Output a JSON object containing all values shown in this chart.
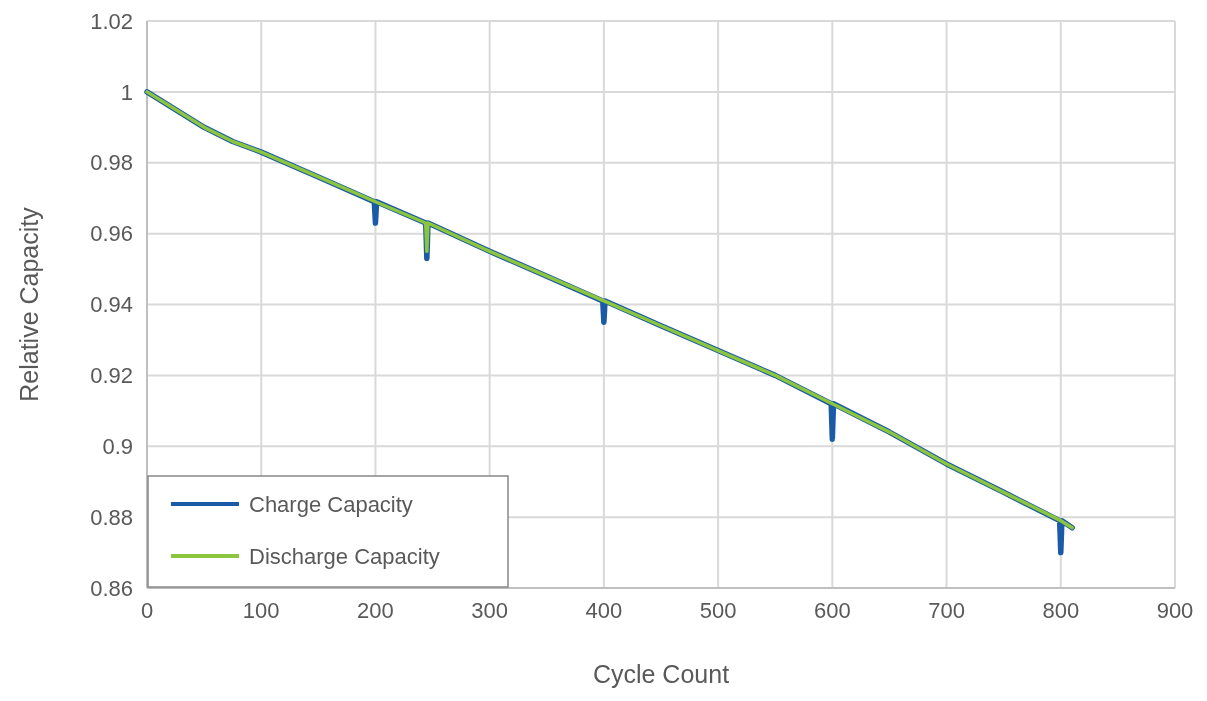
{
  "chart_data": {
    "type": "line",
    "xlabel": "Cycle Count",
    "ylabel": "Relative Capacity",
    "xlim": [
      0,
      900
    ],
    "xticks": [
      0,
      100,
      200,
      300,
      400,
      500,
      600,
      700,
      800,
      900
    ],
    "ylim": [
      0.86,
      1.02
    ],
    "yticks": [
      0.86,
      0.88,
      0.9,
      0.92,
      0.94,
      0.96,
      0.98,
      1,
      1.02
    ],
    "grid": true,
    "legend": "bottom left",
    "marker": "none",
    "line_style": "solid",
    "series": [
      {
        "name": "Charge Capacity",
        "color": "#1a5aa6",
        "x": [
          0,
          25,
          50,
          75,
          100,
          150,
          199,
          200,
          201,
          244,
          245,
          246,
          300,
          350,
          399,
          400,
          401,
          450,
          500,
          550,
          599,
          600,
          601,
          650,
          700,
          750,
          799,
          800,
          801,
          810
        ],
        "values": [
          1.0,
          0.995,
          0.99,
          0.986,
          0.983,
          0.976,
          0.969,
          0.963,
          0.969,
          0.963,
          0.953,
          0.963,
          0.955,
          0.948,
          0.941,
          0.935,
          0.941,
          0.934,
          0.927,
          0.92,
          0.912,
          0.902,
          0.912,
          0.904,
          0.895,
          0.887,
          0.879,
          0.87,
          0.879,
          0.877
        ]
      },
      {
        "name": "Discharge Capacity",
        "color": "#8cc63f",
        "x": [
          0,
          25,
          50,
          75,
          100,
          150,
          200,
          244,
          245,
          246,
          300,
          350,
          400,
          450,
          500,
          550,
          600,
          650,
          700,
          750,
          800,
          810
        ],
        "values": [
          1.0,
          0.995,
          0.99,
          0.986,
          0.983,
          0.976,
          0.969,
          0.963,
          0.955,
          0.963,
          0.955,
          0.948,
          0.941,
          0.934,
          0.927,
          0.92,
          0.912,
          0.904,
          0.895,
          0.887,
          0.879,
          0.877
        ]
      }
    ]
  }
}
